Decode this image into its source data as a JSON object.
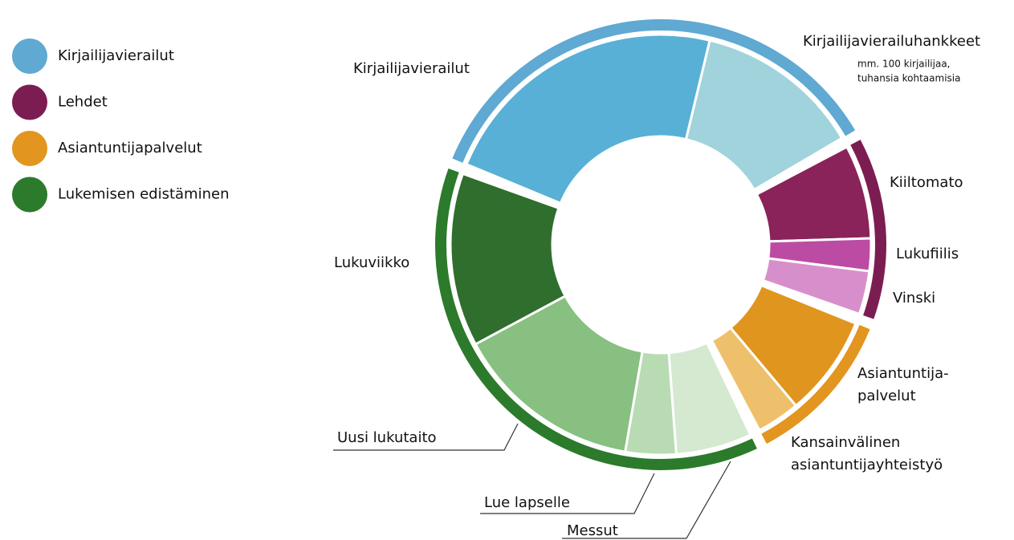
{
  "chart_data": {
    "type": "sunburst",
    "groups": [
      {
        "name": "Kirjailijavierailut",
        "color": "#5fa9d2",
        "children": [
          {
            "label": [
              "Kirjailijavierailut"
            ],
            "color": "#58b0d6",
            "value": 81
          },
          {
            "label": [
              "Kirjailijavierailuhankkeet"
            ],
            "sublabel": [
              "mm. 100 kirjailijaa,",
              "tuhansia kohtaamisia"
            ],
            "color": "#a0d3dc",
            "value": 46
          }
        ]
      },
      {
        "name": "Lehdet",
        "color": "#7c1d52",
        "children": [
          {
            "label": [
              "Kiiltomato"
            ],
            "color": "#8a2359",
            "value": 26
          },
          {
            "label": [
              "Lukufiilis"
            ],
            "color": "#bc4ca3",
            "value": 9
          },
          {
            "label": [
              "Vinski"
            ],
            "color": "#d78fcc",
            "value": 12
          }
        ]
      },
      {
        "name": "Asiantuntijapalvelut",
        "color": "#e2951f",
        "children": [
          {
            "label": [
              "Asiantuntija-",
              "palvelut"
            ],
            "color": "#e0951f",
            "value": 28
          },
          {
            "label": [
              "Kansainvälinen",
              "asiantuntijayhteistyö"
            ],
            "color": "#efc06b",
            "value": 12
          }
        ]
      },
      {
        "name": "Lukemisen edistäminen",
        "color": "#2c7a2b",
        "children": [
          {
            "label": [
              "Messut"
            ],
            "color": "#d4e9d0",
            "value": 21
          },
          {
            "label": [
              "Lue lapselle"
            ],
            "color": "#b8dbb3",
            "value": 14
          },
          {
            "label": [
              "Uusi lukutaito"
            ],
            "color": "#87c080",
            "value": 52
          },
          {
            "label": [
              "Lukuviikko"
            ],
            "color": "#2f6e2d",
            "value": 48
          }
        ]
      }
    ]
  }
}
